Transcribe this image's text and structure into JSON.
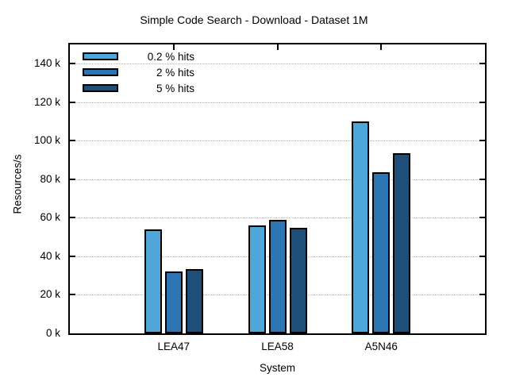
{
  "chart_data": {
    "type": "bar",
    "title": "Simple Code Search - Download - Dataset 1M",
    "xlabel": "System",
    "ylabel": "Resources/s",
    "categories": [
      "LEA47",
      "LEA58",
      "A5N46"
    ],
    "series": [
      {
        "name": "0.2 % hits",
        "color": "#4fa6d9",
        "values": [
          54000,
          56000,
          110000
        ]
      },
      {
        "name": "2 % hits",
        "color": "#2e75b4",
        "values": [
          32000,
          59000,
          83500
        ]
      },
      {
        "name": "5 % hits",
        "color": "#1f4e79",
        "values": [
          33500,
          55000,
          93500
        ]
      }
    ],
    "ylim": [
      0,
      150000
    ],
    "yticks": {
      "values": [
        0,
        20000,
        40000,
        60000,
        80000,
        100000,
        120000,
        140000
      ],
      "labels": [
        "0 k",
        "20 k",
        "40 k",
        "60 k",
        "80 k",
        "100 k",
        "120 k",
        "140 k"
      ]
    },
    "grid": true,
    "grid_color": "#b3b3b3",
    "bar_outline": "#000000",
    "legend_position": "top-left"
  }
}
